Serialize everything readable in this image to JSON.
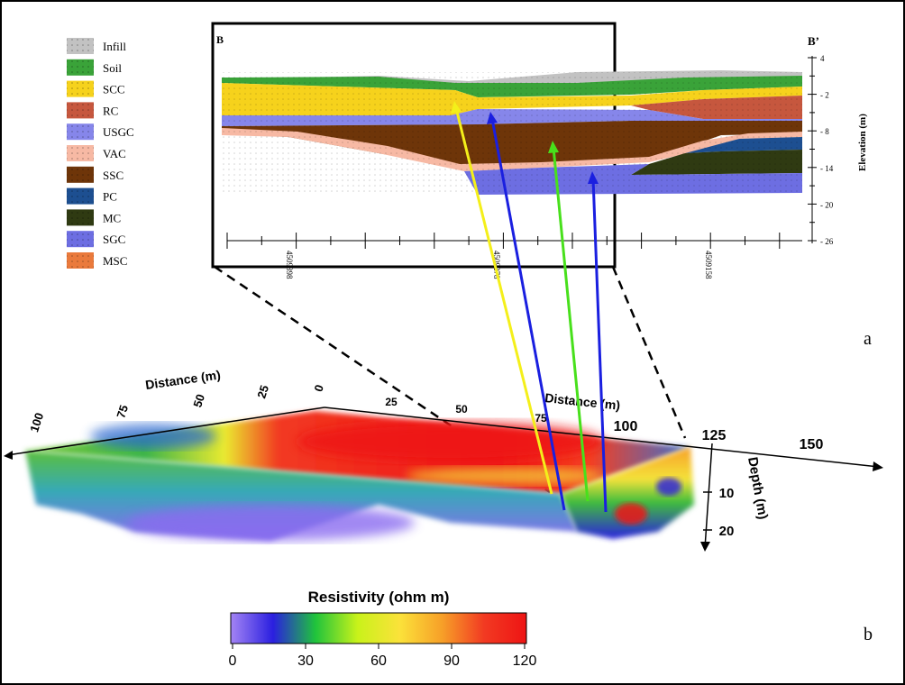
{
  "legend": {
    "items": [
      {
        "label": "Infill",
        "color": "#c2c2c2"
      },
      {
        "label": "Soil",
        "color": "#3aa339"
      },
      {
        "label": "SCC",
        "color": "#f6d21c"
      },
      {
        "label": "RC",
        "color": "#c6573e"
      },
      {
        "label": "USGC",
        "color": "#8686ea"
      },
      {
        "label": "VAC",
        "color": "#f7b9a4"
      },
      {
        "label": "SSC",
        "color": "#6e3509"
      },
      {
        "label": "PC",
        "color": "#1d4f91"
      },
      {
        "label": "MC",
        "color": "#2f3a12"
      },
      {
        "label": "SGC",
        "color": "#6d6ee2"
      },
      {
        "label": "MSC",
        "color": "#ea7a3c"
      }
    ]
  },
  "section": {
    "label_left": "B",
    "label_right": "B’",
    "elevation_label": "Elevation (m)",
    "elevation_ticks": [
      "4",
      "- 2",
      "- 8",
      "- 14",
      "- 20",
      "- 26"
    ],
    "easting_labels": [
      "4509398",
      "4509278",
      "4509158"
    ]
  },
  "panel_labels": {
    "a": "a",
    "b": "b"
  },
  "block": {
    "distance_label_left": "Distance (m)",
    "distance_label_right": "Distance (m)",
    "left_axis_ticks": [
      "100",
      "75",
      "50",
      "25",
      "0"
    ],
    "right_axis_ticks": [
      "25",
      "50",
      "75",
      "100",
      "125",
      "150"
    ],
    "depth_label": "Depth (m)",
    "depth_ticks": [
      "10",
      "20"
    ]
  },
  "colorbar": {
    "title": "Resistivity (ohm m)",
    "ticks": [
      "0",
      "30",
      "60",
      "90",
      "120"
    ],
    "stops": [
      "#a384f4",
      "#2a1fe0",
      "#1fc33c",
      "#c9f21a",
      "#fbe23a",
      "#f7a028",
      "#f23a22",
      "#ee1414"
    ]
  },
  "arrow_colors": {
    "yellow": "#f4ef1a",
    "blue": "#1a1fe0",
    "green": "#48e01c"
  }
}
